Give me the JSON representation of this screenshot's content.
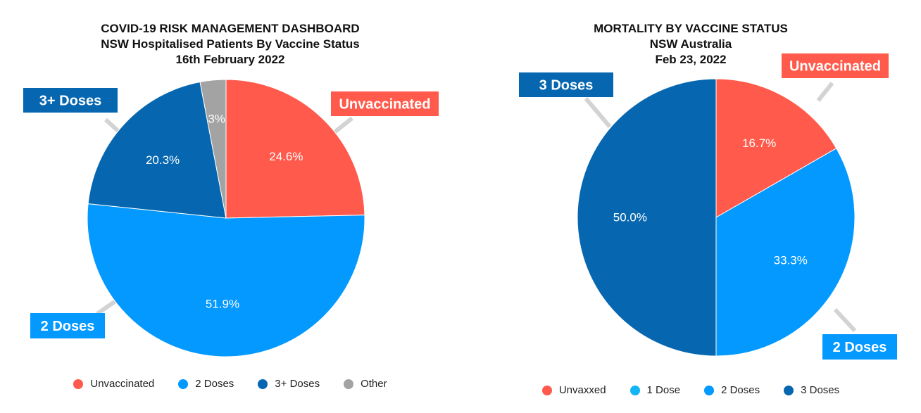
{
  "colors": {
    "unvaccinated": "#FF5A4B",
    "two_doses": "#0399FF",
    "three_doses": "#0667B0",
    "other": "#A3A3A3",
    "one_dose": "#12B5F5",
    "leader": "#D3D3D3",
    "slice_label": "#FFFFFF"
  },
  "chart_data": [
    {
      "type": "pie",
      "title": "COVID-19 RISK MANAGEMENT DASHBOARD",
      "subtitle": "NSW Hospitalised Patients By Vaccine Status",
      "date": "16th February 2022",
      "slices": [
        {
          "name": "Unvaccinated",
          "value": 24.6,
          "label": "24.6%",
          "color": "#FF5A4B",
          "callout": "Unvaccinated"
        },
        {
          "name": "2 Doses",
          "value": 51.9,
          "label": "51.9%",
          "color": "#0399FF",
          "callout": "2 Doses"
        },
        {
          "name": "3+ Doses",
          "value": 20.3,
          "label": "20.3%",
          "color": "#0667B0",
          "callout": "3+ Doses"
        },
        {
          "name": "Other",
          "value": 3,
          "label": "3%",
          "color": "#A3A3A3",
          "callout": ""
        }
      ],
      "legend": [
        {
          "name": "Unvaccinated",
          "color": "#FF5A4B"
        },
        {
          "name": "2 Doses",
          "color": "#0399FF"
        },
        {
          "name": "3+ Doses",
          "color": "#0667B0"
        },
        {
          "name": "Other",
          "color": "#A3A3A3"
        }
      ],
      "legend_position": "bottom"
    },
    {
      "type": "pie",
      "title": "MORTALITY BY VACCINE STATUS",
      "subtitle": "NSW Australia",
      "date": "Feb 23, 2022",
      "slices": [
        {
          "name": "Unvaxxed",
          "value": 16.7,
          "label": "16.7%",
          "color": "#FF5A4B",
          "callout": "Unvaccinated"
        },
        {
          "name": "2 Doses",
          "value": 33.3,
          "label": "33.3%",
          "color": "#0399FF",
          "callout": "2 Doses"
        },
        {
          "name": "3 Doses",
          "value": 50.0,
          "label": "50.0%",
          "color": "#0667B0",
          "callout": "3 Doses"
        }
      ],
      "legend": [
        {
          "name": "Unvaxxed",
          "color": "#FF5A4B"
        },
        {
          "name": "1 Dose",
          "color": "#12B5F5"
        },
        {
          "name": "2 Doses",
          "color": "#0399FF"
        },
        {
          "name": "3 Doses",
          "color": "#0667B0"
        }
      ],
      "legend_position": "bottom"
    }
  ]
}
